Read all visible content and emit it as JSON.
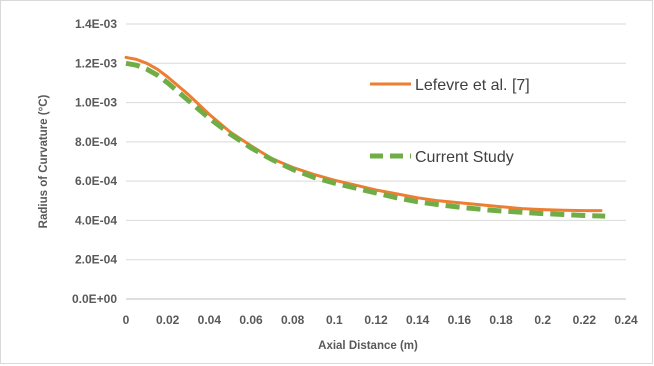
{
  "chart_data": {
    "type": "line",
    "title": "",
    "xlabel": "Axial Distance (m)",
    "ylabel": "Radius of Curvature (°C)",
    "xlim": [
      0,
      0.24
    ],
    "ylim": [
      0,
      0.0014
    ],
    "x_ticks": [
      0,
      0.02,
      0.04,
      0.06,
      0.08,
      0.1,
      0.12,
      0.14,
      0.16,
      0.18,
      0.2,
      0.22,
      0.24
    ],
    "x_tick_labels": [
      "0",
      "0.02",
      "0.04",
      "0.06",
      "0.08",
      "0.1",
      "0.12",
      "0.14",
      "0.16",
      "0.18",
      "0.2",
      "0.22",
      "0.24"
    ],
    "y_ticks": [
      0,
      0.0002,
      0.0004,
      0.0006,
      0.0008,
      0.001,
      0.0012,
      0.0014
    ],
    "y_tick_labels": [
      "0.0E+00",
      "2.0E-04",
      "4.0E-04",
      "6.0E-04",
      "8.0E-04",
      "1.0E-03",
      "1.2E-03",
      "1.4E-03"
    ],
    "grid": "horizontal",
    "legend_position": "right",
    "series": [
      {
        "name": "Lefevre et al. [7]",
        "color": "#ED7D31",
        "style": "solid",
        "x": [
          0,
          0.005,
          0.01,
          0.015,
          0.02,
          0.03,
          0.04,
          0.05,
          0.06,
          0.07,
          0.08,
          0.09,
          0.1,
          0.11,
          0.12,
          0.13,
          0.14,
          0.15,
          0.16,
          0.17,
          0.18,
          0.19,
          0.2,
          0.21,
          0.22,
          0.228
        ],
        "y": [
          0.00123,
          0.00122,
          0.0012,
          0.00117,
          0.00113,
          0.00104,
          0.00094,
          0.00085,
          0.00078,
          0.000715,
          0.00067,
          0.000635,
          0.000605,
          0.00058,
          0.000555,
          0.000535,
          0.000515,
          0.0005,
          0.00049,
          0.00048,
          0.00047,
          0.00046,
          0.000455,
          0.000452,
          0.00045,
          0.00045
        ]
      },
      {
        "name": "Current Study",
        "color": "#70AD47",
        "style": "dashed",
        "x": [
          0,
          0.005,
          0.01,
          0.015,
          0.02,
          0.03,
          0.04,
          0.05,
          0.06,
          0.07,
          0.08,
          0.09,
          0.1,
          0.11,
          0.12,
          0.13,
          0.14,
          0.15,
          0.16,
          0.17,
          0.18,
          0.19,
          0.2,
          0.21,
          0.22,
          0.23
        ],
        "y": [
          0.0012,
          0.00119,
          0.00117,
          0.00114,
          0.0011,
          0.00101,
          0.00092,
          0.00084,
          0.00077,
          0.00071,
          0.00066,
          0.00062,
          0.00059,
          0.000565,
          0.00054,
          0.000515,
          0.000495,
          0.00048,
          0.000468,
          0.000457,
          0.000448,
          0.000442,
          0.000435,
          0.00043,
          0.000425,
          0.000422
        ]
      }
    ]
  }
}
